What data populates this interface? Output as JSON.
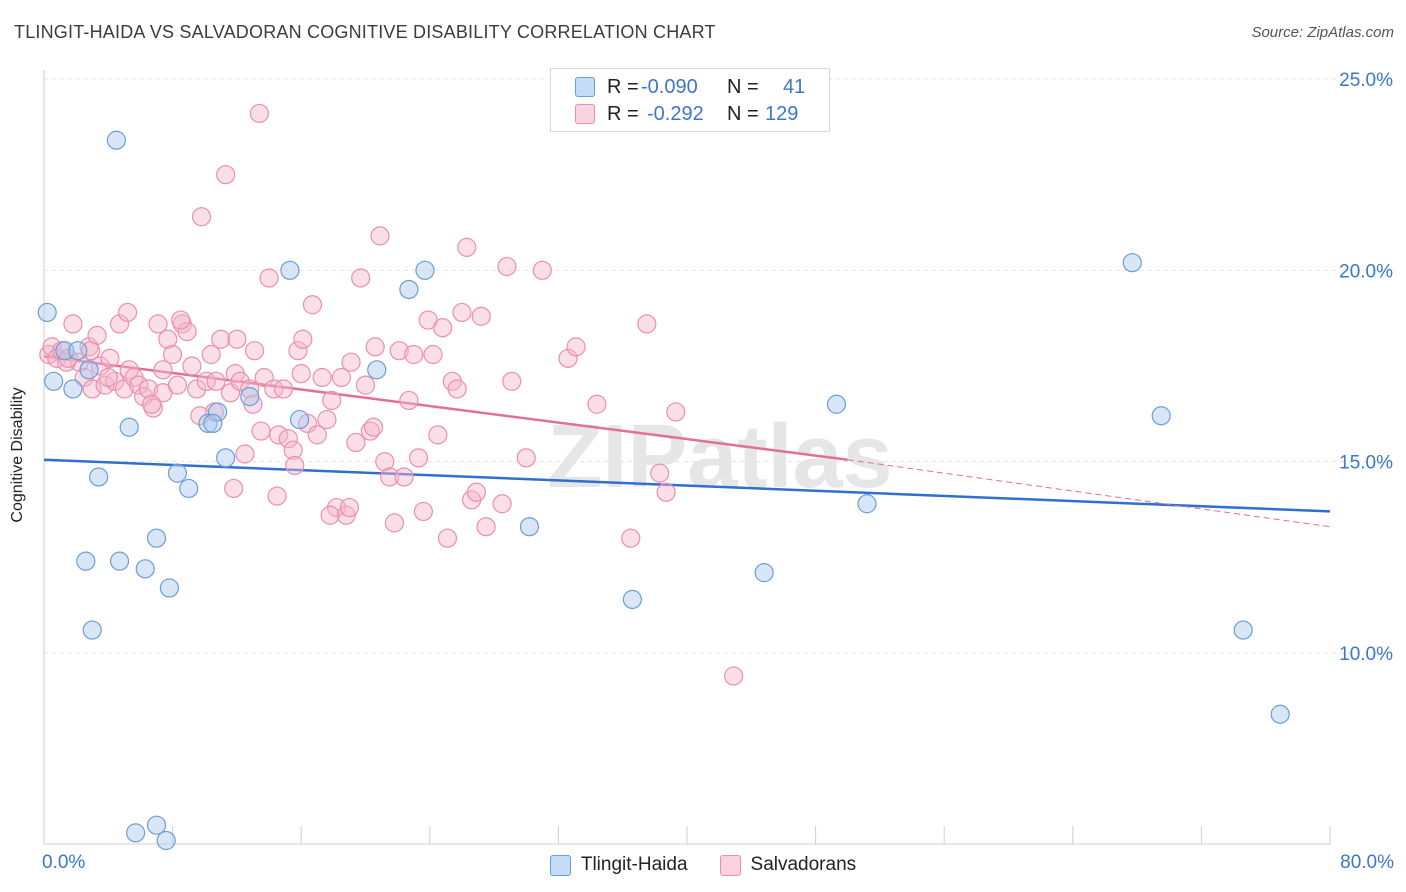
{
  "title": "TLINGIT-HAIDA VS SALVADORAN COGNITIVE DISABILITY CORRELATION CHART",
  "source": "Source: ZipAtlas.com",
  "watermark": "ZIPatlas",
  "legend_top": [
    {
      "r_label": "R =",
      "r_value": "-0.090",
      "n_label": "N =",
      "n_value": "41",
      "color": "#a9c8f0"
    },
    {
      "r_label": "R =",
      "r_value": "-0.292",
      "n_label": "N =",
      "n_value": "129",
      "color": "#f5b8cb"
    }
  ],
  "legend_bottom": [
    {
      "label": "Tlingit-Haida",
      "color": "#a9c8f0"
    },
    {
      "label": "Salvadorans",
      "color": "#f5b8cb"
    }
  ],
  "chart_data": {
    "type": "scatter",
    "title": "TLINGIT-HAIDA VS SALVADORAN COGNITIVE DISABILITY CORRELATION CHART",
    "xlabel": "",
    "ylabel": "Cognitive Disability",
    "xlim": [
      0,
      80
    ],
    "ylim": [
      5,
      26
    ],
    "x_tick_labels": [
      "0.0%",
      "80.0%"
    ],
    "y_ticks": [
      10,
      15,
      20,
      25
    ],
    "y_tick_labels": [
      "10.0%",
      "15.0%",
      "20.0%",
      "25.0%"
    ],
    "grid": true,
    "legend_position": "top-center",
    "series": [
      {
        "name": "Tlingit-Haida",
        "color": "#6a9ed8",
        "fill": "#a9c8f0",
        "trend": {
          "x": [
            0,
            80
          ],
          "y": [
            15.05,
            13.7
          ],
          "color": "#2f6fcd"
        },
        "points": [
          [
            0.2,
            18.9
          ],
          [
            0.6,
            17.1
          ],
          [
            1.3,
            17.9
          ],
          [
            1.8,
            16.9
          ],
          [
            2.8,
            17.4
          ],
          [
            2.1,
            17.9
          ],
          [
            4.5,
            23.4
          ],
          [
            2.6,
            12.4
          ],
          [
            3.0,
            10.6
          ],
          [
            3.4,
            14.6
          ],
          [
            4.7,
            12.4
          ],
          [
            5.3,
            15.9
          ],
          [
            6.3,
            12.2
          ],
          [
            7.0,
            13.0
          ],
          [
            7.8,
            11.7
          ],
          [
            8.3,
            14.7
          ],
          [
            9.0,
            14.3
          ],
          [
            10.2,
            16.0
          ],
          [
            10.8,
            16.3
          ],
          [
            11.3,
            15.1
          ],
          [
            10.5,
            16.0
          ],
          [
            12.8,
            16.7
          ],
          [
            15.3,
            20.0
          ],
          [
            15.9,
            16.1
          ],
          [
            20.7,
            17.4
          ],
          [
            22.7,
            19.5
          ],
          [
            23.7,
            20.0
          ],
          [
            30.2,
            13.3
          ],
          [
            36.6,
            11.4
          ],
          [
            44.8,
            12.1
          ],
          [
            49.3,
            16.5
          ],
          [
            51.2,
            13.9
          ],
          [
            67.7,
            20.2
          ],
          [
            69.5,
            16.2
          ],
          [
            74.6,
            10.6
          ],
          [
            76.9,
            8.4
          ],
          [
            5.7,
            5.3
          ],
          [
            7.0,
            5.5
          ],
          [
            7.6,
            5.1
          ]
        ]
      },
      {
        "name": "Salvadorans",
        "color": "#ec8fac",
        "fill": "#f5b8cb",
        "trend": {
          "x": [
            0,
            50
          ],
          "y": [
            17.75,
            15.05
          ],
          "color": "#e26f95"
        },
        "trend_extension": {
          "x": [
            50,
            80
          ],
          "y": [
            15.05,
            13.3
          ]
        },
        "points": [
          [
            0.3,
            17.8
          ],
          [
            0.5,
            18.0
          ],
          [
            0.8,
            17.7
          ],
          [
            1.1,
            17.9
          ],
          [
            1.4,
            17.6
          ],
          [
            1.8,
            18.6
          ],
          [
            2.2,
            17.6
          ],
          [
            2.5,
            17.2
          ],
          [
            2.8,
            18.0
          ],
          [
            3.0,
            16.9
          ],
          [
            3.3,
            18.3
          ],
          [
            3.5,
            17.5
          ],
          [
            3.8,
            17.0
          ],
          [
            4.1,
            17.7
          ],
          [
            4.4,
            17.1
          ],
          [
            4.7,
            18.6
          ],
          [
            5.0,
            16.9
          ],
          [
            5.3,
            17.4
          ],
          [
            5.6,
            17.2
          ],
          [
            5.9,
            17.0
          ],
          [
            6.2,
            16.7
          ],
          [
            6.5,
            16.9
          ],
          [
            6.8,
            16.4
          ],
          [
            7.1,
            18.6
          ],
          [
            7.4,
            16.8
          ],
          [
            7.7,
            18.2
          ],
          [
            8.0,
            17.8
          ],
          [
            8.3,
            17.0
          ],
          [
            8.6,
            18.6
          ],
          [
            8.9,
            18.4
          ],
          [
            9.2,
            17.5
          ],
          [
            9.5,
            16.9
          ],
          [
            9.8,
            21.4
          ],
          [
            10.1,
            17.1
          ],
          [
            10.4,
            17.8
          ],
          [
            10.7,
            17.1
          ],
          [
            11.0,
            18.2
          ],
          [
            11.3,
            22.5
          ],
          [
            11.6,
            16.8
          ],
          [
            11.9,
            17.3
          ],
          [
            12.2,
            17.1
          ],
          [
            12.5,
            15.2
          ],
          [
            12.8,
            16.9
          ],
          [
            13.1,
            17.9
          ],
          [
            13.4,
            24.1
          ],
          [
            13.7,
            17.2
          ],
          [
            14.0,
            19.8
          ],
          [
            14.3,
            16.9
          ],
          [
            14.6,
            15.7
          ],
          [
            14.9,
            16.9
          ],
          [
            15.2,
            15.6
          ],
          [
            15.5,
            15.3
          ],
          [
            15.8,
            17.9
          ],
          [
            16.1,
            18.2
          ],
          [
            16.4,
            16.0
          ],
          [
            16.7,
            19.1
          ],
          [
            17.0,
            15.7
          ],
          [
            17.3,
            17.2
          ],
          [
            17.6,
            16.1
          ],
          [
            17.9,
            16.6
          ],
          [
            18.2,
            13.8
          ],
          [
            18.5,
            17.2
          ],
          [
            18.8,
            13.6
          ],
          [
            19.1,
            17.6
          ],
          [
            19.4,
            15.5
          ],
          [
            19.7,
            19.8
          ],
          [
            20.0,
            17.0
          ],
          [
            20.3,
            15.8
          ],
          [
            20.6,
            18.0
          ],
          [
            20.9,
            20.9
          ],
          [
            21.2,
            15.0
          ],
          [
            21.5,
            14.6
          ],
          [
            21.8,
            13.4
          ],
          [
            22.1,
            17.9
          ],
          [
            22.4,
            14.6
          ],
          [
            22.7,
            16.6
          ],
          [
            23.0,
            17.8
          ],
          [
            23.3,
            15.1
          ],
          [
            23.6,
            13.7
          ],
          [
            23.9,
            18.7
          ],
          [
            24.2,
            17.8
          ],
          [
            24.5,
            15.7
          ],
          [
            24.8,
            18.5
          ],
          [
            25.1,
            13.0
          ],
          [
            25.4,
            17.1
          ],
          [
            25.7,
            16.9
          ],
          [
            26.0,
            18.9
          ],
          [
            26.3,
            20.6
          ],
          [
            26.6,
            14.0
          ],
          [
            26.9,
            14.2
          ],
          [
            27.2,
            18.8
          ],
          [
            27.5,
            13.3
          ],
          [
            28.5,
            13.9
          ],
          [
            28.8,
            20.1
          ],
          [
            29.1,
            17.1
          ],
          [
            30.0,
            15.1
          ],
          [
            31.0,
            20.0
          ],
          [
            32.6,
            17.7
          ],
          [
            33.1,
            18.0
          ],
          [
            34.4,
            16.5
          ],
          [
            36.5,
            13.0
          ],
          [
            37.5,
            18.6
          ],
          [
            38.3,
            14.7
          ],
          [
            38.7,
            14.2
          ],
          [
            39.3,
            16.3
          ],
          [
            42.9,
            9.4
          ],
          [
            14.5,
            14.1
          ],
          [
            13.0,
            16.5
          ],
          [
            13.5,
            15.8
          ],
          [
            11.8,
            14.3
          ],
          [
            15.6,
            14.9
          ],
          [
            17.8,
            13.6
          ],
          [
            19.0,
            13.8
          ],
          [
            10.6,
            16.3
          ],
          [
            9.7,
            16.2
          ],
          [
            6.7,
            16.5
          ],
          [
            7.4,
            17.4
          ],
          [
            5.2,
            18.9
          ],
          [
            2.9,
            17.9
          ],
          [
            1.5,
            17.7
          ],
          [
            4.0,
            17.2
          ],
          [
            8.5,
            18.7
          ],
          [
            12.0,
            18.2
          ],
          [
            16.0,
            17.3
          ],
          [
            20.5,
            15.9
          ]
        ]
      }
    ]
  }
}
